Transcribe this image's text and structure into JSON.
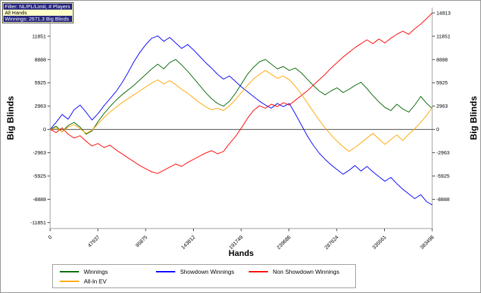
{
  "info_box": {
    "line1": "Filter: NL/PL/Limit, # Players",
    "line2": "All Hands",
    "line3": "Winnings: 2671.3 Big Blinds"
  },
  "chart_data": {
    "type": "line",
    "xlabel": "Hands",
    "ylabel_left": "Big Blinds",
    "ylabel_right": "Big Blinds",
    "xlim": [
      0,
      383498
    ],
    "ylim": [
      -12600,
      15500
    ],
    "grid": false,
    "legend_position": "bottom",
    "xticks": [
      0,
      47937,
      95875,
      143812,
      191749,
      239686,
      287624,
      335561,
      383498
    ],
    "yticks_left": [
      11851,
      8888,
      5925,
      2963,
      0,
      -2963,
      -5925,
      -8888,
      -11851
    ],
    "yticks_right": [
      14813,
      11851,
      8888,
      5925,
      2963,
      0,
      -2963,
      -5925,
      -8888
    ],
    "x": [
      0,
      6000,
      12000,
      18000,
      24000,
      30000,
      36000,
      42000,
      48000,
      54000,
      60000,
      66000,
      72000,
      78000,
      84000,
      90000,
      96000,
      102000,
      108000,
      114000,
      120000,
      126000,
      132000,
      138000,
      144000,
      150000,
      156000,
      162000,
      168000,
      174000,
      180000,
      186000,
      192000,
      198000,
      204000,
      210000,
      216000,
      222000,
      228000,
      234000,
      240000,
      246000,
      252000,
      258000,
      264000,
      270000,
      276000,
      282000,
      288000,
      294000,
      300000,
      306000,
      312000,
      318000,
      324000,
      330000,
      336000,
      342000,
      348000,
      354000,
      360000,
      366000,
      372000,
      378000,
      383498
    ],
    "series": [
      {
        "name": "Winnings",
        "color": "#006600",
        "values": [
          0,
          400,
          -300,
          500,
          900,
          300,
          -600,
          -200,
          1000,
          2000,
          2900,
          3700,
          4400,
          5000,
          5600,
          6300,
          7000,
          7700,
          8300,
          7700,
          8500,
          8900,
          8200,
          7400,
          6500,
          5600,
          4700,
          3900,
          3300,
          2950,
          3600,
          4600,
          5800,
          7000,
          7900,
          8600,
          8900,
          8300,
          7700,
          8000,
          7500,
          7800,
          7200,
          6400,
          5600,
          4900,
          4400,
          4900,
          5300,
          4700,
          5100,
          5600,
          6000,
          5200,
          4300,
          3500,
          2800,
          2400,
          3200,
          2600,
          2200,
          3100,
          4200,
          3300,
          2671
        ]
      },
      {
        "name": "Showdown Winnings",
        "color": "#0000ff",
        "values": [
          0,
          900,
          1900,
          1300,
          2500,
          3100,
          2200,
          1200,
          2000,
          3000,
          3900,
          4800,
          5900,
          7200,
          8600,
          9800,
          10800,
          11600,
          11900,
          11200,
          11700,
          11000,
          10300,
          10800,
          10100,
          9300,
          8500,
          7800,
          7000,
          6400,
          6800,
          6100,
          5400,
          4800,
          4200,
          3600,
          3100,
          2700,
          3300,
          2900,
          3300,
          2000,
          600,
          -800,
          -2000,
          -3000,
          -3800,
          -4500,
          -5100,
          -5700,
          -5200,
          -4600,
          -5300,
          -4700,
          -5400,
          -6000,
          -6600,
          -6100,
          -6900,
          -7600,
          -8200,
          -8800,
          -8300,
          -9200,
          -9600
        ]
      },
      {
        "name": "Non Showdown Winnings",
        "color": "#ff0000",
        "values": [
          0,
          -400,
          200,
          -600,
          -1100,
          -800,
          -1500,
          -2100,
          -1800,
          -2300,
          -2000,
          -2600,
          -3100,
          -3600,
          -4100,
          -4600,
          -5000,
          -5400,
          -5600,
          -5200,
          -4800,
          -4400,
          -4700,
          -4200,
          -3800,
          -3400,
          -3000,
          -2700,
          -3100,
          -2800,
          -1800,
          -900,
          200,
          1400,
          2400,
          3000,
          2700,
          3200,
          2900,
          3400,
          3100,
          3700,
          4300,
          4900,
          5600,
          6300,
          7000,
          7800,
          8500,
          9200,
          9800,
          10400,
          10900,
          11400,
          10900,
          11500,
          11000,
          11600,
          12100,
          12500,
          12100,
          12800,
          13400,
          14100,
          14813
        ]
      },
      {
        "name": "All-In EV",
        "color": "#ffa500",
        "values": [
          0,
          200,
          -300,
          300,
          600,
          100,
          -500,
          -100,
          700,
          1500,
          2200,
          2800,
          3400,
          3900,
          4400,
          4900,
          5400,
          5900,
          6300,
          5800,
          6200,
          5700,
          5100,
          4600,
          4000,
          3400,
          2900,
          2500,
          2700,
          2400,
          3000,
          3800,
          4700,
          5600,
          6400,
          7000,
          7500,
          7000,
          6500,
          6800,
          6300,
          5500,
          4500,
          3400,
          2300,
          1200,
          200,
          -700,
          -1500,
          -2200,
          -2800,
          -2300,
          -1700,
          -1100,
          -500,
          -1200,
          -1900,
          -1300,
          -700,
          -1400,
          -600,
          100,
          900,
          1800,
          2800
        ]
      }
    ]
  }
}
